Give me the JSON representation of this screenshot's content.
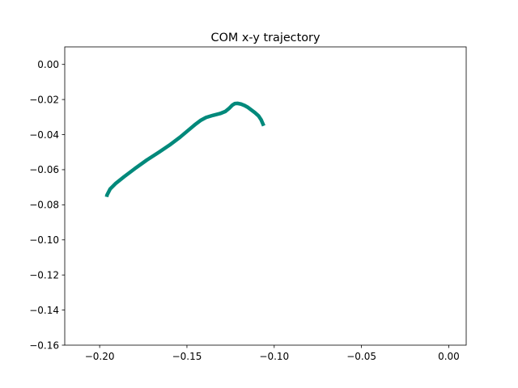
{
  "chart_data": {
    "type": "line",
    "title": "COM x-y trajectory",
    "xlabel": "",
    "ylabel": "",
    "xlim": [
      -0.22,
      0.01
    ],
    "ylim": [
      -0.16,
      0.01
    ],
    "grid": false,
    "x_ticks": [
      -0.2,
      -0.15,
      -0.1,
      -0.05,
      0.0
    ],
    "x_tick_labels": [
      "−0.20",
      "−0.15",
      "−0.10",
      "−0.05",
      "0.00"
    ],
    "y_ticks": [
      0.0,
      -0.02,
      -0.04,
      -0.06,
      -0.08,
      -0.1,
      -0.12,
      -0.14,
      -0.16
    ],
    "y_tick_labels": [
      "0.00",
      "−0.02",
      "−0.04",
      "−0.06",
      "−0.08",
      "−0.10",
      "−0.12",
      "−0.14",
      "−0.16"
    ],
    "series": [
      {
        "color": "#00897b",
        "x": [
          -0.196,
          -0.1958,
          -0.194,
          -0.191,
          -0.186,
          -0.18,
          -0.173,
          -0.166,
          -0.16,
          -0.154,
          -0.148,
          -0.145,
          -0.142,
          -0.139,
          -0.135,
          -0.131,
          -0.128,
          -0.126,
          -0.124,
          -0.1225,
          -0.121,
          -0.119,
          -0.117,
          -0.115,
          -0.113,
          -0.111,
          -0.109,
          -0.1075,
          -0.106
        ],
        "y": [
          -0.0755,
          -0.0745,
          -0.071,
          -0.068,
          -0.064,
          -0.0595,
          -0.0545,
          -0.05,
          -0.046,
          -0.0415,
          -0.0365,
          -0.034,
          -0.0318,
          -0.0302,
          -0.029,
          -0.028,
          -0.0268,
          -0.0252,
          -0.0232,
          -0.0223,
          -0.0222,
          -0.0226,
          -0.0234,
          -0.0245,
          -0.026,
          -0.0275,
          -0.0293,
          -0.0315,
          -0.035
        ]
      }
    ]
  }
}
